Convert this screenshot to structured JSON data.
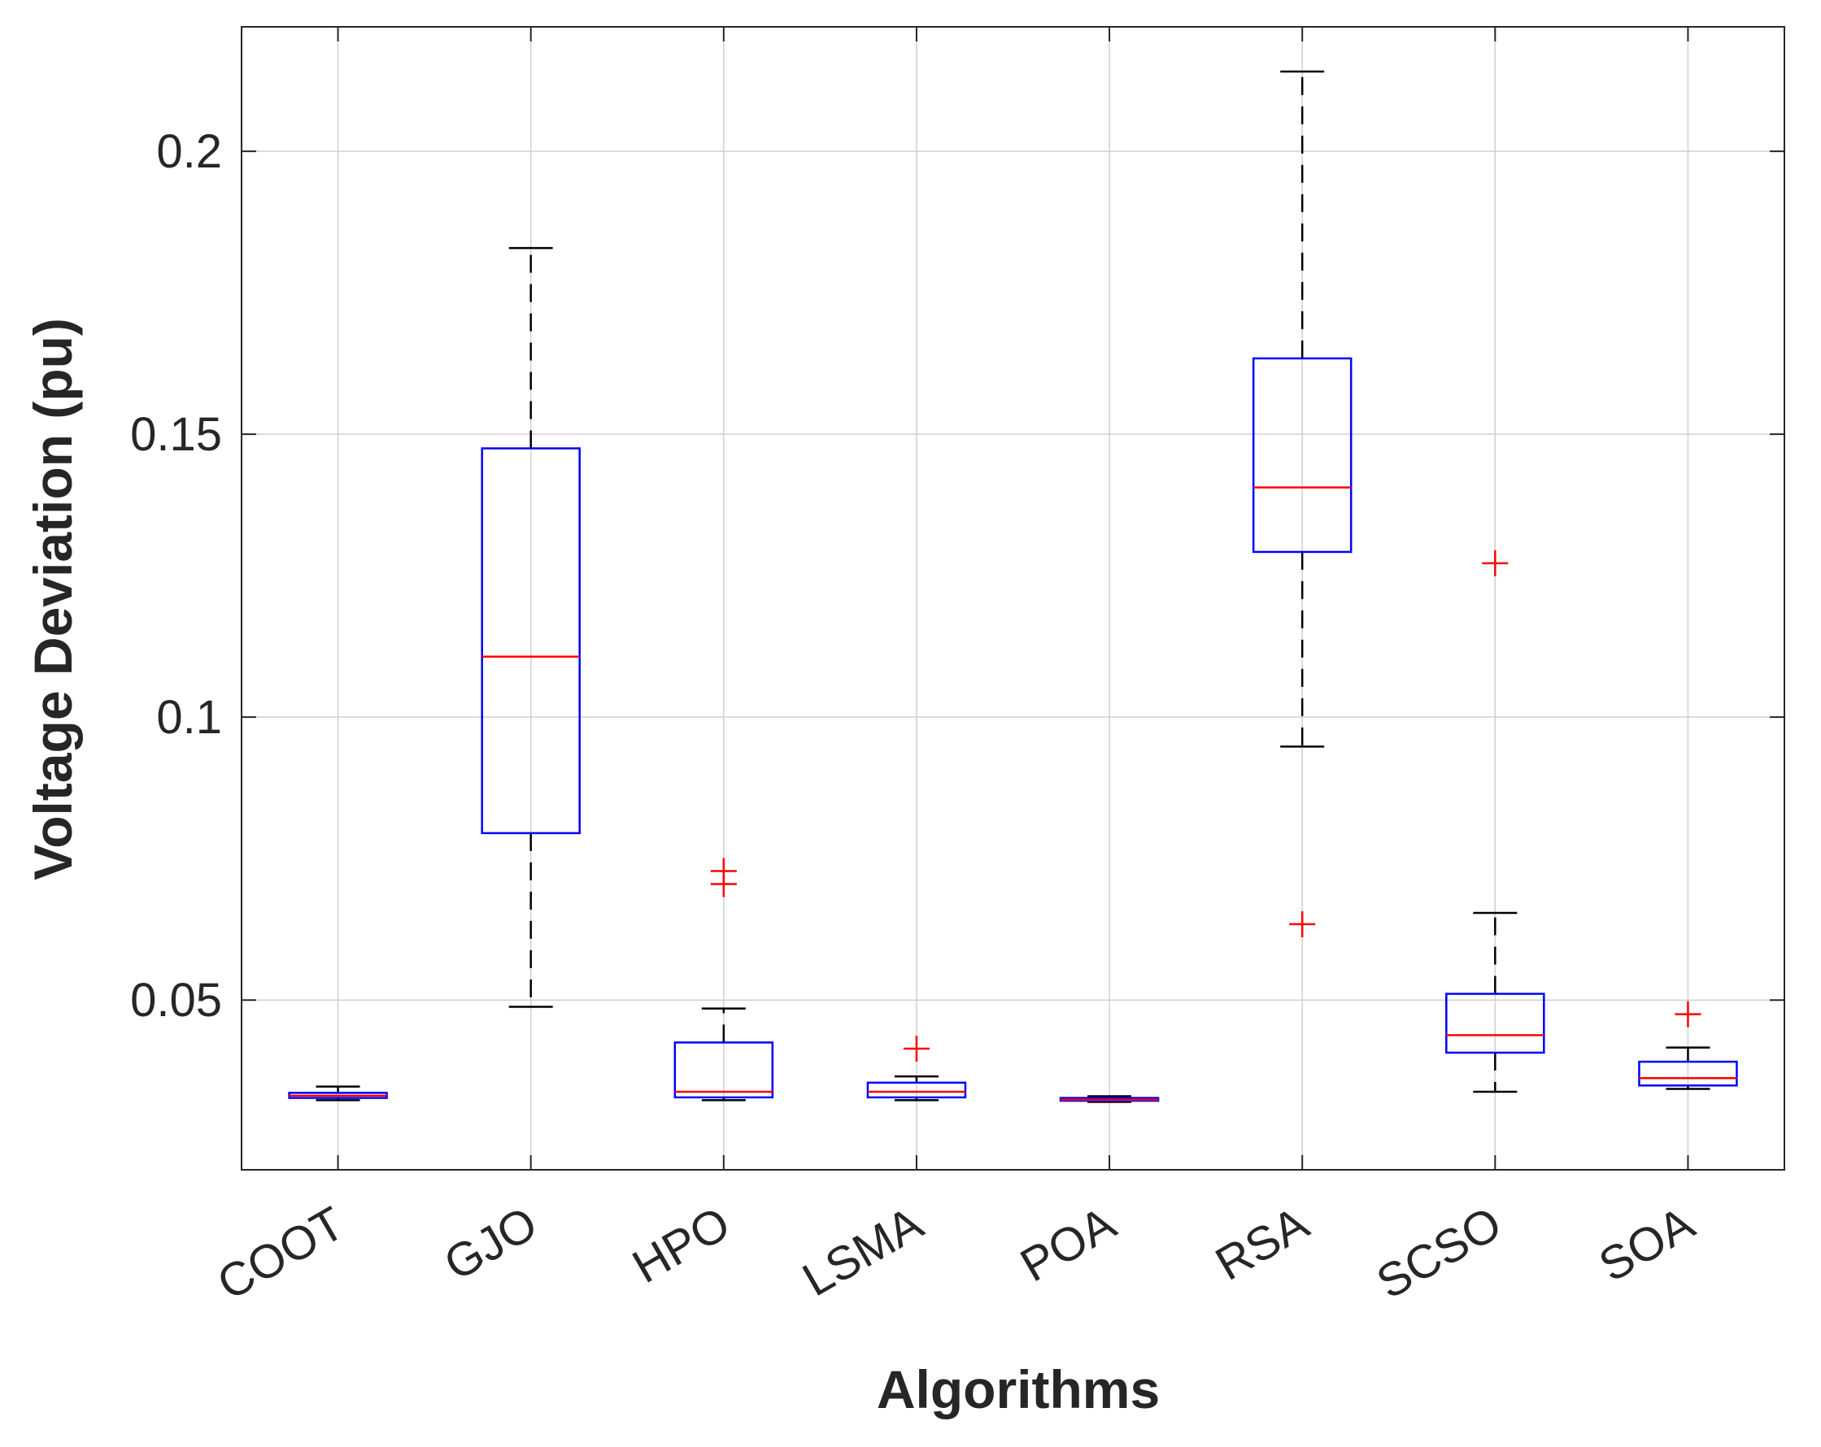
{
  "chart_data": {
    "type": "box",
    "xlabel": "Algorithms",
    "ylabel": "Voltage Deviation (pu)",
    "ylim": [
      0.02,
      0.222
    ],
    "yticks": [
      0.05,
      0.1,
      0.15,
      0.2
    ],
    "ytick_labels": [
      "0.05",
      "0.1",
      "0.15",
      "0.2"
    ],
    "grid": true,
    "categories": [
      "COOT",
      "GJO",
      "HPO",
      "LSMA",
      "POA",
      "RSA",
      "SCSO",
      "SOA"
    ],
    "boxes": [
      {
        "category": "COOT",
        "whisker_low": 0.0323,
        "q1": 0.0327,
        "median": 0.0331,
        "q3": 0.0336,
        "whisker_high": 0.0347,
        "outliers": []
      },
      {
        "category": "GJO",
        "whisker_low": 0.0488,
        "q1": 0.0795,
        "median": 0.1107,
        "q3": 0.1475,
        "whisker_high": 0.1829,
        "outliers": []
      },
      {
        "category": "HPO",
        "whisker_low": 0.0323,
        "q1": 0.0328,
        "median": 0.0338,
        "q3": 0.0425,
        "whisker_high": 0.0485,
        "outliers": [
          0.0705,
          0.0728
        ]
      },
      {
        "category": "LSMA",
        "whisker_low": 0.0323,
        "q1": 0.0328,
        "median": 0.0338,
        "q3": 0.0354,
        "whisker_high": 0.0365,
        "outliers": [
          0.0414
        ]
      },
      {
        "category": "POA",
        "whisker_low": 0.032,
        "q1": 0.0322,
        "median": 0.0324,
        "q3": 0.0327,
        "whisker_high": 0.033,
        "outliers": []
      },
      {
        "category": "RSA",
        "whisker_low": 0.0948,
        "q1": 0.1292,
        "median": 0.1406,
        "q3": 0.1634,
        "whisker_high": 0.2141,
        "outliers": [
          0.0634
        ]
      },
      {
        "category": "SCSO",
        "whisker_low": 0.0338,
        "q1": 0.0407,
        "median": 0.0438,
        "q3": 0.0511,
        "whisker_high": 0.0654,
        "outliers": [
          0.1272
        ]
      },
      {
        "category": "SOA",
        "whisker_low": 0.0343,
        "q1": 0.0349,
        "median": 0.0362,
        "q3": 0.0391,
        "whisker_high": 0.0416,
        "outliers": [
          0.0475
        ]
      }
    ],
    "colors": {
      "box": "#0000ff",
      "median": "#ff0000",
      "outlier": "#ff0000",
      "whisker": "#000000",
      "grid": "#d0d0d0",
      "axis": "#262626"
    }
  }
}
